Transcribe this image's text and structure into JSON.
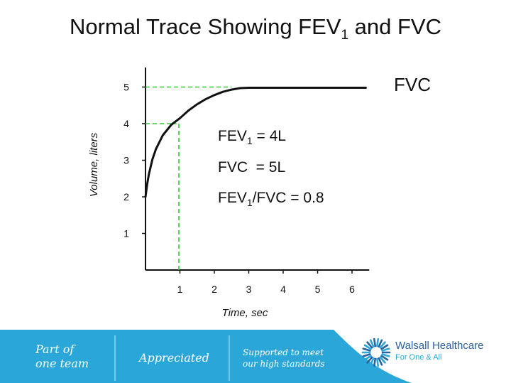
{
  "title": {
    "main": "Normal Trace Showing FEV",
    "sub": "1",
    "rest": " and FVC"
  },
  "chart_data": {
    "type": "line",
    "xlabel": "Time, sec",
    "ylabel": "Volume, liters",
    "xlim": [
      0,
      6.5
    ],
    "ylim": [
      0,
      5.5
    ],
    "x_ticks": [
      1,
      2,
      3,
      4,
      5,
      6
    ],
    "y_ticks": [
      1,
      2,
      3,
      4,
      5
    ],
    "grid": false,
    "series": [
      {
        "name": "FVC",
        "x": [
          0,
          0.05,
          0.1,
          0.2,
          0.3,
          0.5,
          0.75,
          1.0,
          1.25,
          1.5,
          1.75,
          2.0,
          2.25,
          2.5,
          2.75,
          3.0,
          4.0,
          5.0,
          6.4
        ],
        "y": [
          2.0,
          2.35,
          2.62,
          3.02,
          3.3,
          3.68,
          3.97,
          4.15,
          4.36,
          4.53,
          4.67,
          4.78,
          4.87,
          4.93,
          4.97,
          4.98,
          4.98,
          4.98,
          4.98
        ],
        "color": "#111111"
      }
    ],
    "reference_lines": [
      {
        "x": [
          0,
          2.5
        ],
        "y": [
          5,
          5
        ],
        "color": "#33cc33",
        "style": "dashed"
      },
      {
        "x": [
          0,
          0.9
        ],
        "y": [
          4,
          4
        ],
        "color": "#33cc33",
        "style": "dashed"
      },
      {
        "x": [
          0.97,
          0.97
        ],
        "y": [
          0,
          4
        ],
        "color": "#33cc33",
        "style": "dashed"
      }
    ],
    "annotations": {
      "fev1": {
        "main": "FEV",
        "sub": "1",
        "rest": " = 4L"
      },
      "fvc": "FVC  = 5L",
      "ratio": {
        "main": "FEV",
        "sub": "1",
        "rest": "/FVC = 0.8"
      }
    }
  },
  "footer": {
    "item1_line1": "Part of",
    "item1_line2": "one team",
    "item2": "Appreciated",
    "item3_line1": "Supported to meet",
    "item3_line2": "our high standards",
    "logo_name": "Walsall Healthcare",
    "logo_tagline": "For One & All",
    "colors": {
      "band": "#2aa7d8",
      "logo": "#2a62a0"
    }
  }
}
